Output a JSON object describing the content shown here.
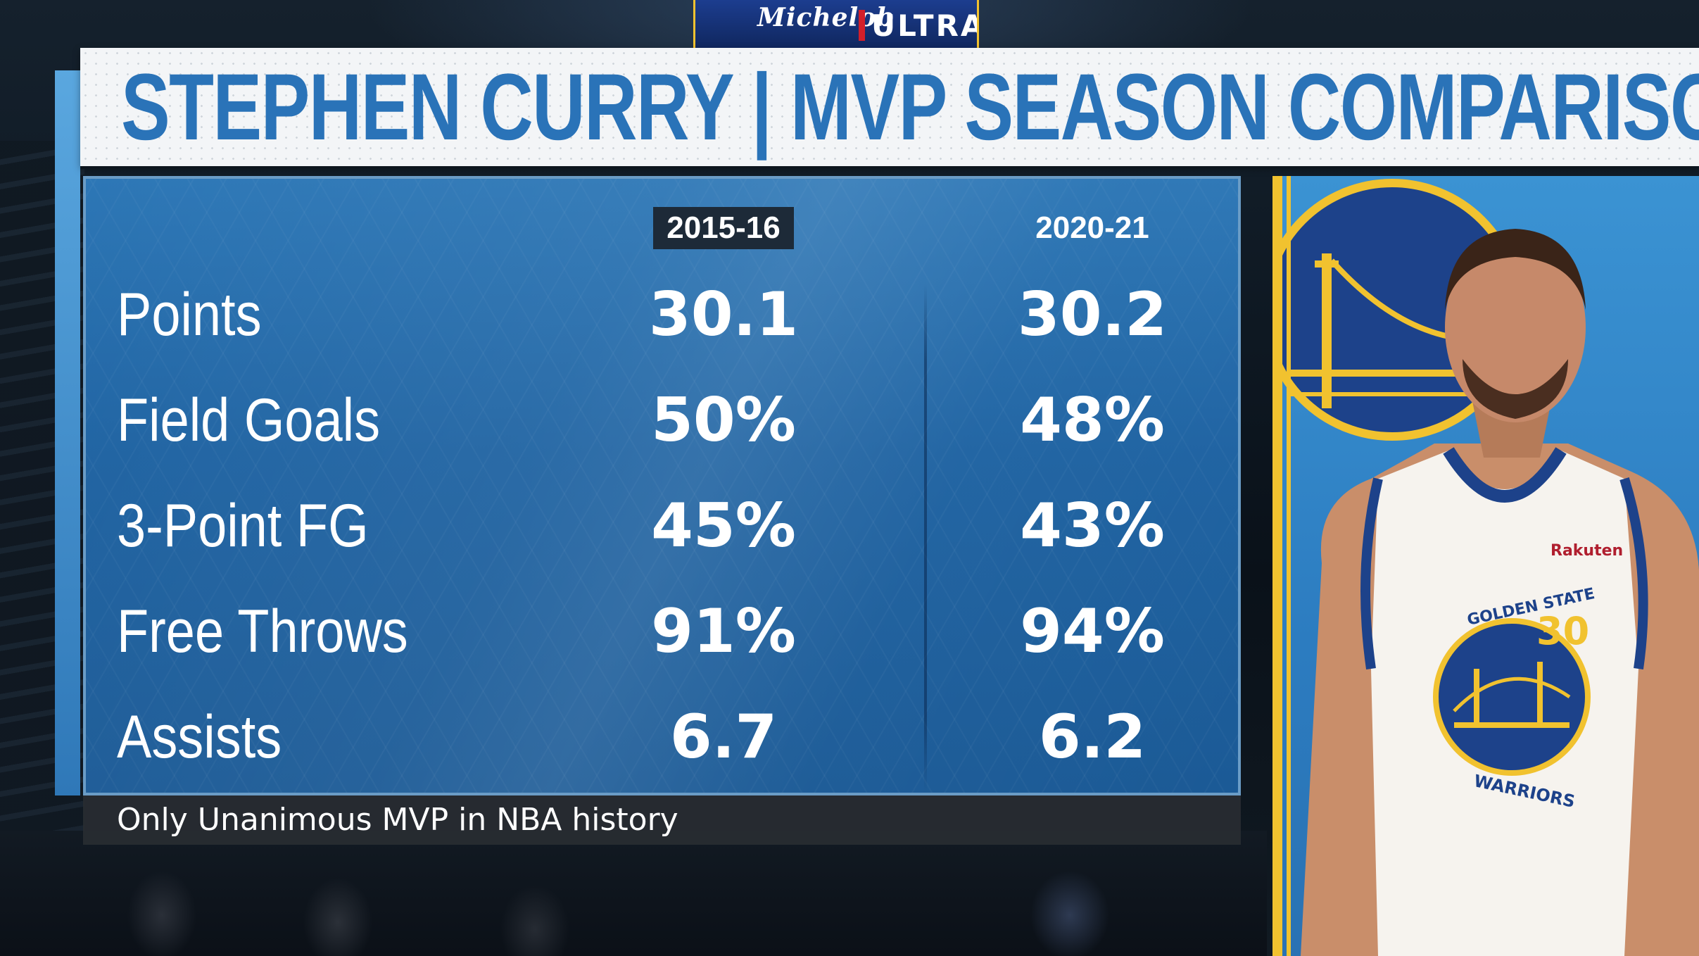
{
  "scoreboard": {
    "brand": "Michelob",
    "brand_suffix": "ULTRA"
  },
  "header": {
    "title": "STEPHEN CURRY | MVP SEASON COMPARISON"
  },
  "table": {
    "seasons": [
      "2015-16",
      "2020-21"
    ],
    "rows": [
      {
        "label": "Points",
        "values": [
          "30.1",
          "30.2"
        ]
      },
      {
        "label": "Field Goals",
        "values": [
          "50%",
          "48%"
        ]
      },
      {
        "label": "3-Point FG",
        "values": [
          "45%",
          "43%"
        ]
      },
      {
        "label": "Free Throws",
        "values": [
          "91%",
          "94%"
        ]
      },
      {
        "label": "Assists",
        "values": [
          "6.7",
          "6.2"
        ]
      }
    ]
  },
  "note": "Only Unanimous MVP in NBA history",
  "player": {
    "sponsor": "Rakuten",
    "jersey_team": "GOLDEN STATE",
    "jersey_name": "WARRIORS",
    "jersey_number": "30"
  },
  "colors": {
    "title_blue": "#2a73b8",
    "panel_blue": "#1f63a2",
    "warriors_gold": "#f1c22f",
    "warriors_navy": "#1d428a"
  }
}
